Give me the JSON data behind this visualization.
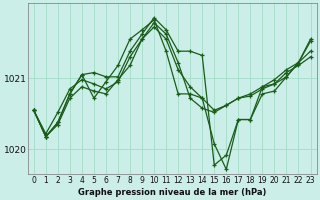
{
  "xlabel": "Graphe pression niveau de la mer (hPa)",
  "background_color": "#cceee8",
  "grid_color": "#aaddcc",
  "line_color": "#1a5c1a",
  "ylim": [
    1019.65,
    1022.05
  ],
  "yticks": [
    1020,
    1021
  ],
  "ytick_fontsize": 6.5,
  "xtick_fontsize": 5.5,
  "series": [
    [
      1020.55,
      1020.18,
      1020.35,
      1020.72,
      1020.88,
      1020.82,
      1020.78,
      1020.98,
      1021.18,
      1021.55,
      1021.72,
      1021.55,
      1021.12,
      1020.88,
      1020.72,
      1020.55,
      1020.62,
      1020.72,
      1020.75,
      1020.85,
      1020.92,
      1021.08,
      1021.18,
      1021.3
    ],
    [
      1020.55,
      1020.22,
      1020.52,
      1020.85,
      1020.98,
      1020.92,
      1020.85,
      1020.95,
      1021.3,
      1021.55,
      1021.78,
      1021.62,
      1021.22,
      1020.72,
      1020.58,
      1020.52,
      1020.62,
      1020.72,
      1020.78,
      1020.88,
      1020.98,
      1021.12,
      1021.22,
      1021.38
    ],
    [
      1020.55,
      1020.18,
      1020.38,
      1020.78,
      1021.05,
      1020.72,
      1020.95,
      1021.18,
      1021.55,
      1021.68,
      1021.82,
      1021.38,
      1020.78,
      1020.78,
      1020.72,
      1020.08,
      1019.72,
      1020.42,
      1020.42,
      1020.88,
      1020.92,
      1021.02,
      1021.22,
      1021.52
    ],
    [
      1020.55,
      1020.18,
      1020.38,
      1020.78,
      1021.05,
      1021.08,
      1021.02,
      1021.02,
      1021.38,
      1021.62,
      1021.85,
      1021.68,
      1021.38,
      1021.38,
      1021.32,
      1019.78,
      1019.92,
      1020.42,
      1020.42,
      1020.78,
      1020.82,
      1021.02,
      1021.22,
      1021.55
    ]
  ]
}
